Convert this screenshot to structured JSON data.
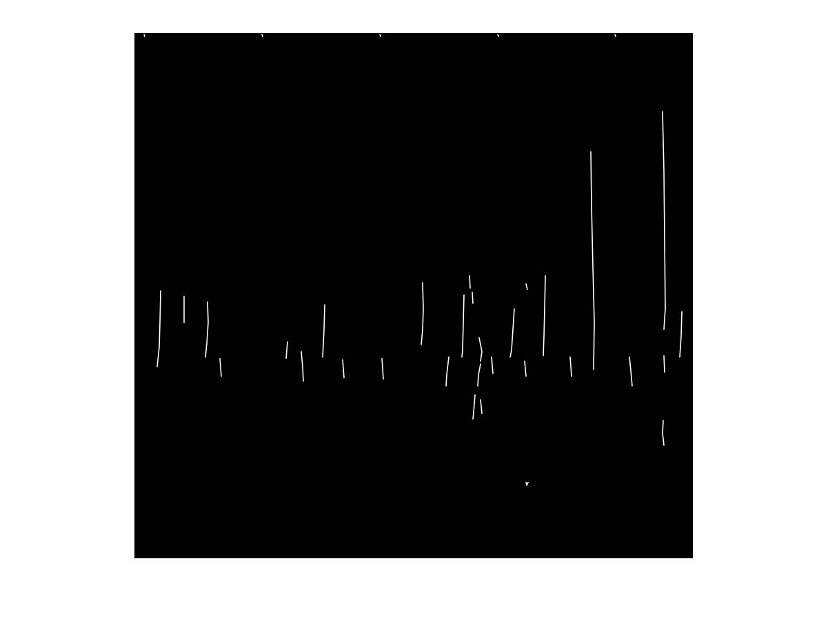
{
  "figure": {
    "background_color": "#ffffff",
    "image_background_color": "#000000",
    "edge_color": "#ffffff",
    "image_kind": "binary-edge-map"
  }
}
